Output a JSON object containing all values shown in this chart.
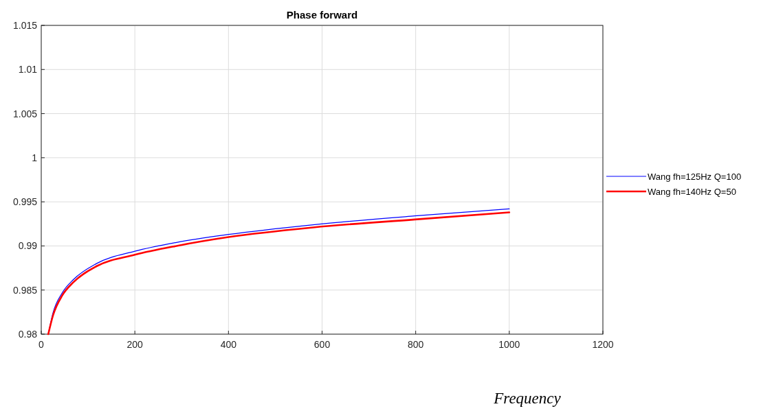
{
  "chart_data": {
    "type": "line",
    "title": "Phase forward",
    "xlabel": "Frequency",
    "x": [
      15,
      25,
      45,
      69,
      118,
      200,
      289,
      400,
      581,
      798,
      1000
    ],
    "series": [
      {
        "name": "Wang fh=125Hz Q=100",
        "color": "#0000ff",
        "values": [
          0.98,
          0.9824,
          0.9847,
          0.9862,
          0.988,
          0.9894,
          0.9904,
          0.9913,
          0.9924,
          0.9934,
          0.9942
        ]
      },
      {
        "name": "Wang fh=140Hz Q=50",
        "color": "#ff0000",
        "values": [
          0.98,
          0.9821,
          0.9844,
          0.9859,
          0.9877,
          0.989,
          0.99,
          0.991,
          0.9921,
          0.993,
          0.9938
        ]
      }
    ],
    "xlim": [
      0,
      1200
    ],
    "xticks": [
      0,
      200,
      400,
      600,
      800,
      1000,
      1200
    ],
    "ylim": [
      0.98,
      1.015
    ],
    "yticks": [
      0.98,
      0.985,
      0.99,
      0.995,
      1,
      1.005,
      1.01,
      1.015
    ],
    "grid": true,
    "legend": "right",
    "line_style": "solid",
    "marker": "none"
  }
}
